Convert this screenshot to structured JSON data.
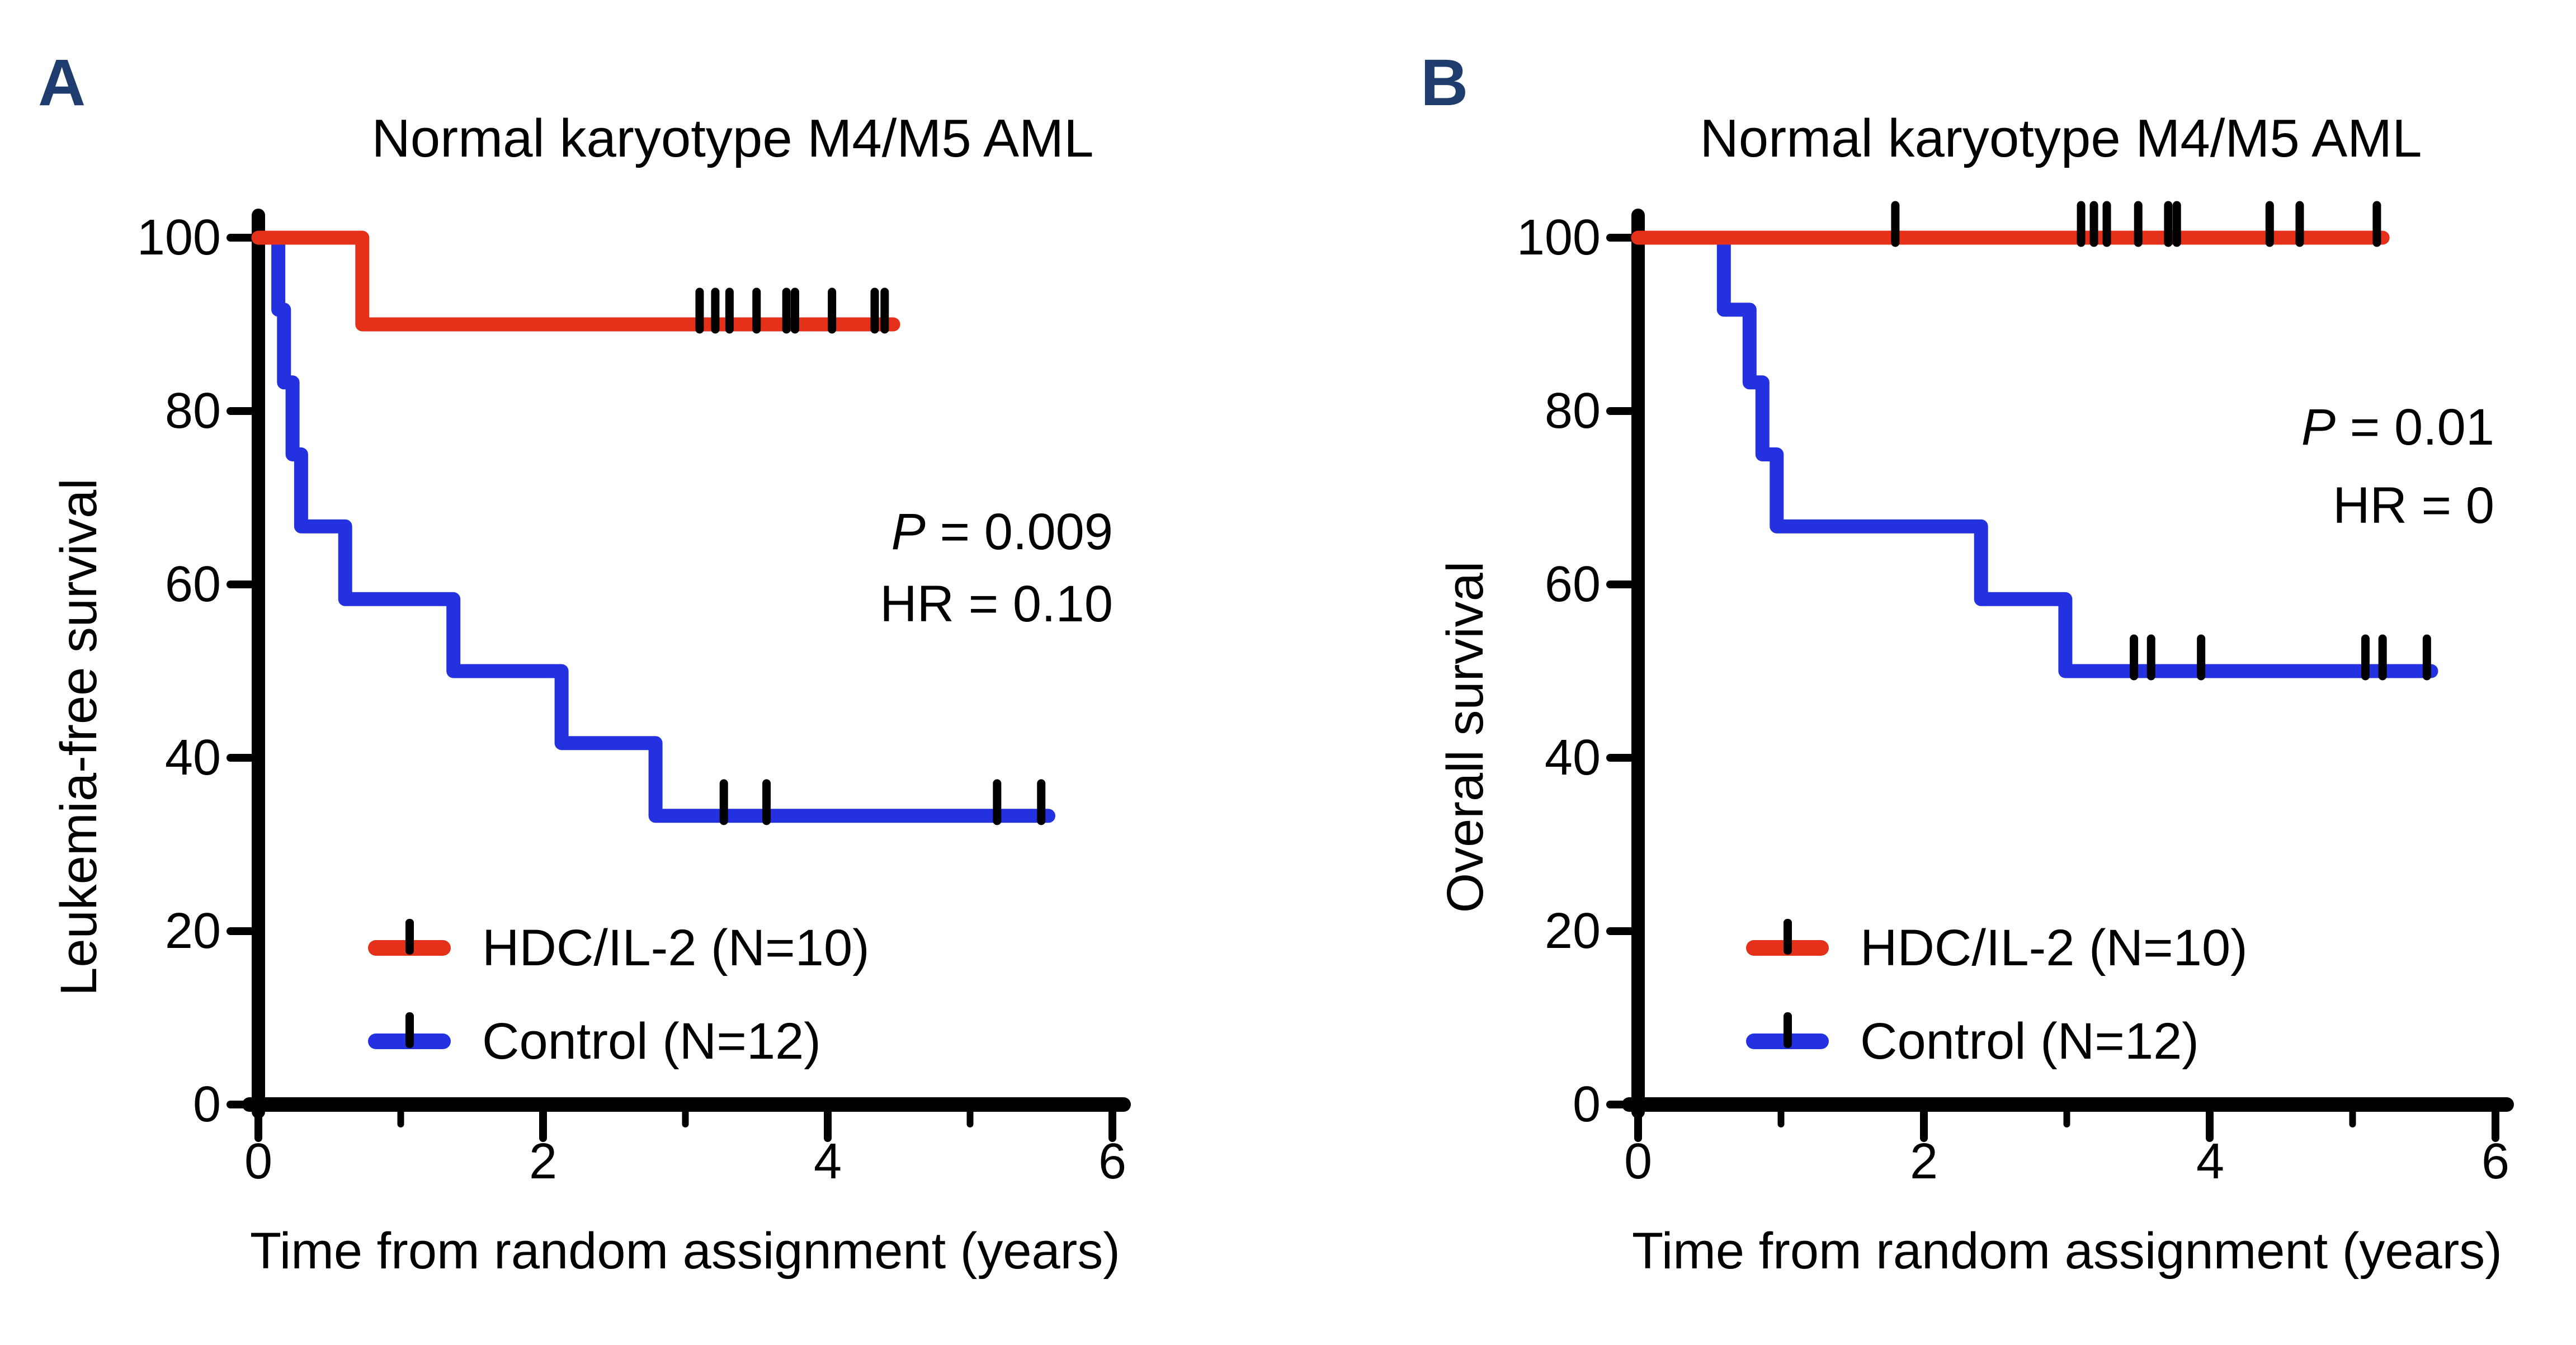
{
  "figure": {
    "panel_label_color": "#1E3D6E",
    "background": "#ffffff",
    "axis_color": "#000000"
  },
  "panels": [
    {
      "label": "A",
      "title": "Normal karyotype M4/M5 AML",
      "y_axis_label": "Leukemia-free survival",
      "x_axis_label": "Time from random assignment (years)",
      "y_tick_labels": [
        "100",
        "80",
        "60",
        "40",
        "20",
        "0"
      ],
      "x_tick_labels": [
        "0",
        "2",
        "4",
        "6"
      ],
      "stats": {
        "p_label": "P",
        "p_rest": " = 0.009",
        "hr": "HR = 0.10"
      },
      "legend": [
        {
          "label": "HDC/IL-2 (N=10)"
        },
        {
          "label": "Control (N=12)"
        }
      ]
    },
    {
      "label": "B",
      "title": "Normal karyotype M4/M5 AML",
      "y_axis_label": "Overall survival",
      "x_axis_label": "Time from random assignment (years)",
      "y_tick_labels": [
        "100",
        "80",
        "60",
        "40",
        "20",
        "0"
      ],
      "x_tick_labels": [
        "0",
        "2",
        "4",
        "6"
      ],
      "stats": {
        "p_label": "P",
        "p_rest": " = 0.01",
        "hr": "HR = 0"
      },
      "legend": [
        {
          "label": "HDC/IL-2 (N=10)"
        },
        {
          "label": "Control (N=12)"
        }
      ]
    }
  ],
  "chart_data": [
    {
      "type": "line",
      "subtype": "kaplan-meier-step",
      "title": "Normal karyotype M4/M5 AML",
      "xlabel": "Time from random assignment (years)",
      "ylabel": "Leukemia-free survival",
      "xlim": [
        0,
        6
      ],
      "ylim": [
        0,
        100
      ],
      "x_ticks": [
        0,
        2,
        4,
        6
      ],
      "x_minor_ticks": [
        1,
        3,
        5
      ],
      "y_ticks": [
        100,
        80,
        60,
        40,
        20,
        0
      ],
      "grid": false,
      "legend_position": "lower-left-inside",
      "annotations": [
        "P = 0.009",
        "HR = 0.10"
      ],
      "series": [
        {
          "name": "HDC/IL-2 (N=10)",
          "color": "#E5311A",
          "steps": [
            [
              0,
              100
            ],
            [
              0.73,
              100
            ],
            [
              0.73,
              90
            ],
            [
              4.46,
              90
            ]
          ],
          "censor_marks": [
            [
              3.1,
              90
            ],
            [
              3.21,
              90
            ],
            [
              3.31,
              90
            ],
            [
              3.5,
              90
            ],
            [
              3.71,
              90
            ],
            [
              3.77,
              90
            ],
            [
              4.03,
              90
            ],
            [
              4.33,
              90
            ],
            [
              4.4,
              90
            ]
          ]
        },
        {
          "name": "Control (N=12)",
          "color": "#2431E0",
          "steps": [
            [
              0,
              100
            ],
            [
              0.14,
              100
            ],
            [
              0.14,
              91.7
            ],
            [
              0.18,
              91.7
            ],
            [
              0.18,
              83.3
            ],
            [
              0.24,
              83.3
            ],
            [
              0.24,
              75
            ],
            [
              0.3,
              75
            ],
            [
              0.3,
              66.7
            ],
            [
              0.61,
              66.7
            ],
            [
              0.61,
              58.3
            ],
            [
              1.37,
              58.3
            ],
            [
              1.37,
              50
            ],
            [
              2.13,
              50
            ],
            [
              2.13,
              41.7
            ],
            [
              2.79,
              41.7
            ],
            [
              2.79,
              33.3
            ],
            [
              5.55,
              33.3
            ]
          ],
          "censor_marks": [
            [
              3.27,
              33.3
            ],
            [
              3.57,
              33.3
            ],
            [
              5.19,
              33.3
            ],
            [
              5.5,
              33.3
            ]
          ]
        }
      ]
    },
    {
      "type": "line",
      "subtype": "kaplan-meier-step",
      "title": "Normal karyotype M4/M5 AML",
      "xlabel": "Time from random assignment (years)",
      "ylabel": "Overall survival",
      "xlim": [
        0,
        6
      ],
      "ylim": [
        0,
        100
      ],
      "x_ticks": [
        0,
        2,
        4,
        6
      ],
      "x_minor_ticks": [
        1,
        3,
        5
      ],
      "y_ticks": [
        100,
        80,
        60,
        40,
        20,
        0
      ],
      "grid": false,
      "legend_position": "lower-left-inside",
      "annotations": [
        "P = 0.01",
        "HR = 0"
      ],
      "series": [
        {
          "name": "HDC/IL-2 (N=10)",
          "color": "#E5311A",
          "steps": [
            [
              0,
              100
            ],
            [
              5.21,
              100
            ]
          ],
          "censor_marks": [
            [
              1.8,
              100
            ],
            [
              3.1,
              100
            ],
            [
              3.19,
              100
            ],
            [
              3.28,
              100
            ],
            [
              3.5,
              100
            ],
            [
              3.71,
              100
            ],
            [
              3.77,
              100
            ],
            [
              4.42,
              100
            ],
            [
              4.63,
              100
            ],
            [
              5.17,
              100
            ]
          ]
        },
        {
          "name": "Control (N=12)",
          "color": "#2431E0",
          "steps": [
            [
              0,
              100
            ],
            [
              0.6,
              100
            ],
            [
              0.6,
              91.7
            ],
            [
              0.78,
              91.7
            ],
            [
              0.78,
              83.3
            ],
            [
              0.87,
              83.3
            ],
            [
              0.87,
              75
            ],
            [
              0.97,
              75
            ],
            [
              0.97,
              66.7
            ],
            [
              2.4,
              66.7
            ],
            [
              2.4,
              58.3
            ],
            [
              2.99,
              58.3
            ],
            [
              2.99,
              50
            ],
            [
              5.55,
              50
            ]
          ],
          "censor_marks": [
            [
              3.47,
              50
            ],
            [
              3.59,
              50
            ],
            [
              3.94,
              50
            ],
            [
              5.09,
              50
            ],
            [
              5.21,
              50
            ],
            [
              5.52,
              50
            ]
          ]
        }
      ]
    }
  ]
}
